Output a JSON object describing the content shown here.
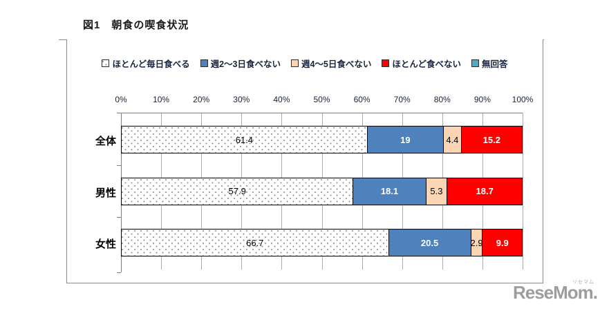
{
  "title": "図1　朝食の喫食状況",
  "chart_data": {
    "type": "bar",
    "orientation": "horizontal-stacked",
    "title": "図1　朝食の喫食状況",
    "categories": [
      "全体",
      "男性",
      "女性"
    ],
    "series": [
      {
        "name": "ほとんど毎日食べる",
        "color": "#ffffff",
        "pattern": "dotted",
        "text_color": "#000000",
        "values": [
          61.4,
          57.9,
          66.7
        ],
        "labels": [
          "61.4",
          "57.9",
          "66.7"
        ]
      },
      {
        "name": "週2～3日食べない",
        "color": "#4f81bd",
        "text_color": "#ffffff",
        "values": [
          19,
          18.1,
          20.5
        ],
        "labels": [
          "19",
          "18.1",
          "20.5"
        ]
      },
      {
        "name": "週4～5日食べない",
        "color": "#fcd5b4",
        "text_color": "#000000",
        "values": [
          4.4,
          5.3,
          2.9
        ],
        "labels": [
          "4.4",
          "5.3",
          "2.9"
        ]
      },
      {
        "name": "ほとんど食べない",
        "color": "#ff0000",
        "text_color": "#ffffff",
        "values": [
          15.2,
          18.7,
          9.9
        ],
        "labels": [
          "15.2",
          "18.7",
          "9.9"
        ]
      },
      {
        "name": "無回答",
        "color": "#4bacc6",
        "text_color": "#000000",
        "values": [
          0,
          0,
          0
        ],
        "labels": [
          "",
          "",
          ""
        ]
      }
    ],
    "x_ticks": [
      "0%",
      "10%",
      "20%",
      "30%",
      "40%",
      "50%",
      "60%",
      "70%",
      "80%",
      "90%",
      "100%"
    ],
    "xlim": [
      0,
      100
    ],
    "grid": true,
    "legend_position": "top"
  },
  "logo": {
    "text": "ReseMom.",
    "ruby": "リセマム"
  }
}
